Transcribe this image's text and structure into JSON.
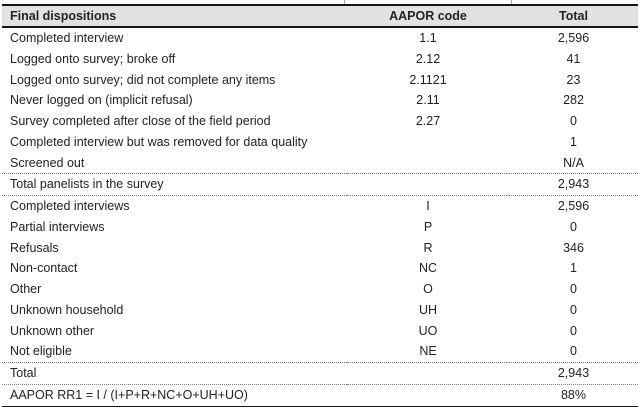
{
  "colors": {
    "header_bg": "#e2e2e2",
    "rule_heavy": "#141414",
    "rule_dotted": "#7f7f7f",
    "text": "#222222"
  },
  "table": {
    "header": {
      "dispositions": "Final dispositions",
      "code": "AAPOR code",
      "total": "Total"
    },
    "rows": [
      {
        "label": "Completed interview",
        "code": "1.1",
        "total": "2,596"
      },
      {
        "label": "Logged onto survey; broke off",
        "code": "2.12",
        "total": "41"
      },
      {
        "label": "Logged onto survey; did not complete any items",
        "code": "2.1121",
        "total": "23"
      },
      {
        "label": "Never logged on (implicit refusal)",
        "code": "2.11",
        "total": "282"
      },
      {
        "label": "Survey completed after close of the field period",
        "code": "2.27",
        "total": "0"
      },
      {
        "label": "Completed interview but was removed for data quality",
        "code": "",
        "total": "1"
      },
      {
        "label": "Screened out",
        "code": "",
        "total": "N/A"
      },
      {
        "label": "Total panelists in the survey",
        "code": "",
        "total": "2,943",
        "rule_above": true,
        "rule_below": true
      },
      {
        "label": "Completed interviews",
        "code": "I",
        "total": "2,596"
      },
      {
        "label": "Partial interviews",
        "code": "P",
        "total": "0"
      },
      {
        "label": "Refusals",
        "code": "R",
        "total": "346"
      },
      {
        "label": "Non-contact",
        "code": "NC",
        "total": "1"
      },
      {
        "label": "Other",
        "code": "O",
        "total": "0"
      },
      {
        "label": "Unknown household",
        "code": "UH",
        "total": "0"
      },
      {
        "label": "Unknown other",
        "code": "UO",
        "total": "0"
      },
      {
        "label": "Not eligible",
        "code": "NE",
        "total": "0"
      },
      {
        "label": "Total",
        "code": "",
        "total": "2,943",
        "rule_above": true,
        "rule_below": true
      },
      {
        "label": "AAPOR RR1 = I / (I+P+R+NC+O+UH+UO)",
        "code": "",
        "total": "88%"
      }
    ]
  }
}
